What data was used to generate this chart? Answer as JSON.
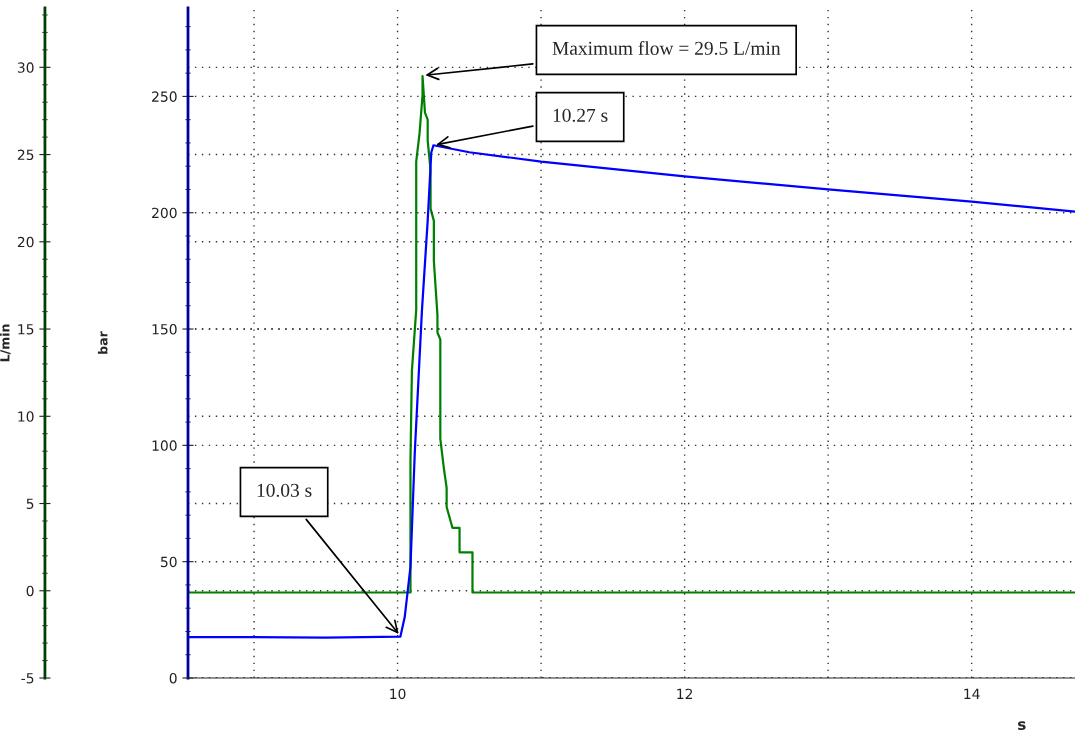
{
  "chart_data": {
    "type": "line",
    "xlabel": "s",
    "ylabel": "bar",
    "y2label": "L/min",
    "xlim": [
      8.54,
      14.72
    ],
    "xticks": [
      {
        "value": 9,
        "label": null
      },
      10,
      {
        "value": 11,
        "label": null
      },
      12,
      {
        "value": 13,
        "label": null
      },
      14
    ],
    "ylim": [
      0,
      288
    ],
    "yticks": [
      0,
      50,
      100,
      150,
      200,
      250
    ],
    "y2lim": [
      -5,
      33.4
    ],
    "y2ticks": [
      -5,
      0,
      5,
      10,
      15,
      20,
      25,
      30
    ],
    "grid": true,
    "legend": false,
    "marker": "none",
    "line_style": "solid",
    "series": [
      {
        "color": "#0000ff",
        "x": [
          8.54,
          9.0,
          9.5,
          10.02,
          10.05,
          10.09,
          10.12,
          10.17,
          10.21,
          10.235,
          10.25,
          10.5,
          11,
          12,
          13,
          14,
          14.72
        ],
        "values": [
          17.6,
          17.6,
          17.4,
          17.8,
          26.2,
          47.8,
          96.8,
          158,
          196.6,
          225.9,
          229,
          226,
          222,
          215.6,
          210,
          204.8,
          200.5
        ]
      },
      {
        "color": "#008000",
        "axis": "y2",
        "x": [
          8.54,
          10.09,
          10.09,
          10.1,
          10.13,
          10.13,
          10.153,
          10.174,
          10.174,
          10.191,
          10.21,
          10.21,
          10.23,
          10.23,
          10.253,
          10.253,
          10.278,
          10.278,
          10.298,
          10.298,
          10.323,
          10.342,
          10.342,
          10.383,
          10.432,
          10.432,
          10.522,
          10.522,
          14.72
        ],
        "values": [
          -0.1,
          -0.1,
          7.5,
          12.6,
          16.1,
          24.6,
          26.2,
          28.4,
          29.5,
          27.4,
          27.0,
          25.8,
          24.1,
          21.9,
          21.2,
          18.9,
          15.8,
          14.8,
          14.4,
          8.7,
          7.0,
          5.9,
          4.8,
          3.6,
          3.6,
          2.2,
          2.2,
          -0.1,
          -0.1
        ]
      }
    ],
    "annotations": [
      {
        "text": "Maximum flow = 29.5 L/min",
        "x": 10.174,
        "y": 259
      },
      {
        "text": "10.27 s",
        "x": 10.25,
        "y": 229
      },
      {
        "text": "10.03 s",
        "x": 10.02,
        "y": 18
      }
    ]
  }
}
